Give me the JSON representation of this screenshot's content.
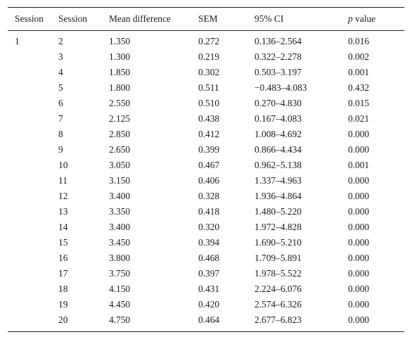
{
  "table": {
    "headers": {
      "session_a": "Session",
      "session_b": "Session",
      "mean_difference": "Mean difference",
      "sem": "SEM",
      "ci": "95% CI",
      "p_italic": "p",
      "p_rest": " value"
    },
    "group_label": "1",
    "rows": [
      {
        "session": "2",
        "mean": "1.350",
        "sem": "0.272",
        "ci": "0.136–2.564",
        "p": "0.016"
      },
      {
        "session": "3",
        "mean": "1.300",
        "sem": "0.219",
        "ci": "0.322–2.278",
        "p": "0.002"
      },
      {
        "session": "4",
        "mean": "1.850",
        "sem": "0.302",
        "ci": "0.503–3.197",
        "p": "0.001"
      },
      {
        "session": "5",
        "mean": "1.800",
        "sem": "0.511",
        "ci": "−0.483–4.083",
        "p": "0.432"
      },
      {
        "session": "6",
        "mean": "2.550",
        "sem": "0.510",
        "ci": "0.270–4.830",
        "p": "0.015"
      },
      {
        "session": "7",
        "mean": "2.125",
        "sem": "0.438",
        "ci": "0.167–4.083",
        "p": "0.021"
      },
      {
        "session": "8",
        "mean": "2.850",
        "sem": "0.412",
        "ci": "1.008–4.692",
        "p": "0.000"
      },
      {
        "session": "9",
        "mean": "2.650",
        "sem": "0.399",
        "ci": "0.866–4.434",
        "p": "0.000"
      },
      {
        "session": "10",
        "mean": "3.050",
        "sem": "0.467",
        "ci": "0.962–5.138",
        "p": "0.001"
      },
      {
        "session": "11",
        "mean": "3.150",
        "sem": "0.406",
        "ci": "1.337–4.963",
        "p": "0.000"
      },
      {
        "session": "12",
        "mean": "3.400",
        "sem": "0.328",
        "ci": "1.936–4.864",
        "p": "0.000"
      },
      {
        "session": "13",
        "mean": "3.350",
        "sem": "0.418",
        "ci": "1.480–5.220",
        "p": "0.000"
      },
      {
        "session": "14",
        "mean": "3.400",
        "sem": "0.320",
        "ci": "1.972–4.828",
        "p": "0.000"
      },
      {
        "session": "15",
        "mean": "3.450",
        "sem": "0.394",
        "ci": "1.690–5.210",
        "p": "0.000"
      },
      {
        "session": "16",
        "mean": "3.800",
        "sem": "0.468",
        "ci": "1.709–5.891",
        "p": "0.000"
      },
      {
        "session": "17",
        "mean": "3.750",
        "sem": "0.397",
        "ci": "1.978–5.522",
        "p": "0.000"
      },
      {
        "session": "18",
        "mean": "4.150",
        "sem": "0.431",
        "ci": "2.224–6.076",
        "p": "0.000"
      },
      {
        "session": "19",
        "mean": "4.450",
        "sem": "0.420",
        "ci": "2.574–6.326",
        "p": "0.000"
      },
      {
        "session": "20",
        "mean": "4.750",
        "sem": "0.464",
        "ci": "2.677–6.823",
        "p": "0.000"
      }
    ]
  }
}
